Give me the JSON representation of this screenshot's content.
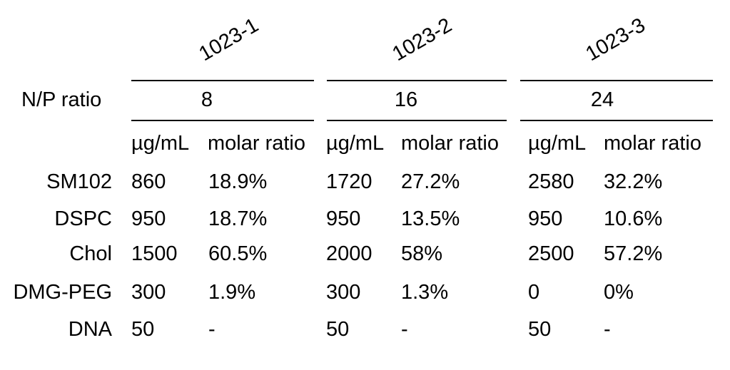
{
  "groups": [
    {
      "title": "1023-1",
      "np_ratio": "8"
    },
    {
      "title": "1023-2",
      "np_ratio": "16"
    },
    {
      "title": "1023-3",
      "np_ratio": "24"
    }
  ],
  "np_label": "N/P ratio",
  "unit_header": "µg/mL",
  "ratio_header": "molar ratio",
  "rows": [
    {
      "label": "SM102",
      "values": [
        [
          "860",
          "18.9%"
        ],
        [
          "1720",
          "27.2%"
        ],
        [
          "2580",
          "32.2%"
        ]
      ]
    },
    {
      "label": "DSPC",
      "values": [
        [
          "950",
          "18.7%"
        ],
        [
          "950",
          "13.5%"
        ],
        [
          "950",
          "10.6%"
        ]
      ]
    },
    {
      "label": "Chol",
      "values": [
        [
          "1500",
          "60.5%"
        ],
        [
          "2000",
          "58%"
        ],
        [
          "2500",
          "57.2%"
        ]
      ]
    },
    {
      "label": "DMG-PEG",
      "values": [
        [
          "300",
          "1.9%"
        ],
        [
          "300",
          "1.3%"
        ],
        [
          "0",
          "0%"
        ]
      ]
    },
    {
      "label": "DNA",
      "values": [
        [
          "50",
          "-"
        ],
        [
          "50",
          "-"
        ],
        [
          "50",
          "-"
        ]
      ]
    }
  ]
}
